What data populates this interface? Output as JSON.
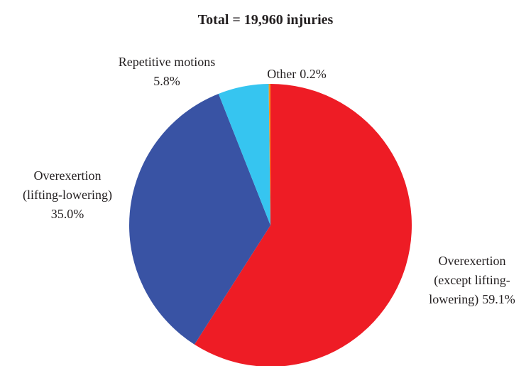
{
  "chart_data": {
    "type": "pie",
    "title": "Total = 19,960 injuries",
    "categories": [
      "Overexertion\n(except lifting-\nlowering)",
      "Overexertion\n(lifting-lowering)",
      "Repetitive motions",
      "Other"
    ],
    "values": [
      59.1,
      35.0,
      5.8,
      0.2
    ],
    "value_labels": [
      "59.1%",
      "35.0%",
      "5.8%",
      "0.2%"
    ],
    "colors": [
      "#ee1c25",
      "#3953a4",
      "#36c5f0",
      "#f7941d"
    ]
  }
}
